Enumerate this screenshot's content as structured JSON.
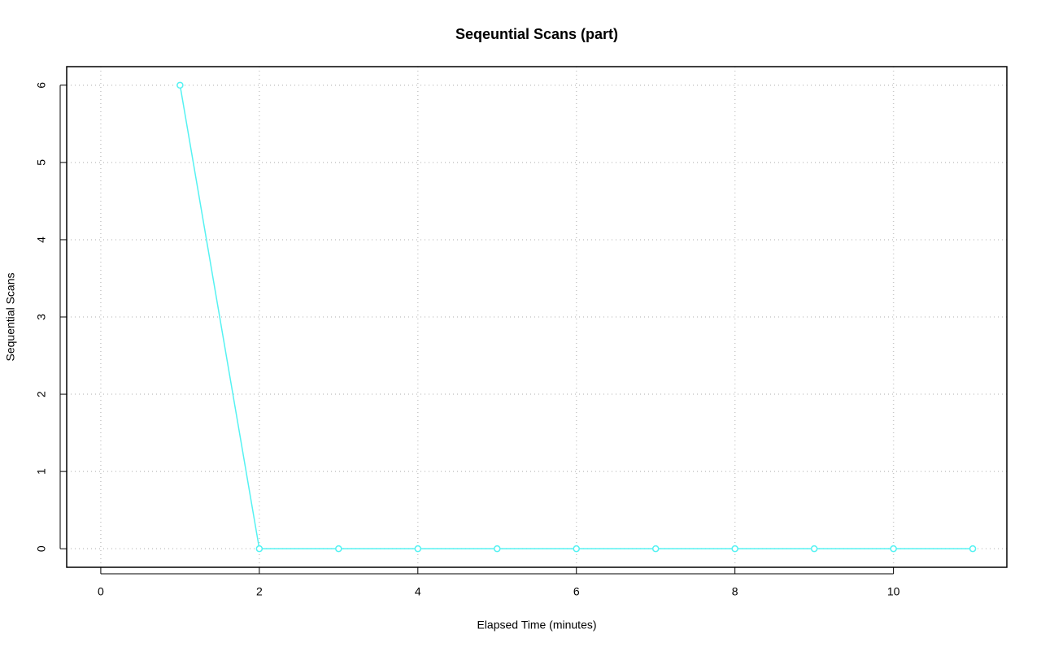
{
  "chart_data": {
    "type": "line",
    "title": "Seqeuntial Scans (part)",
    "x_label": "Elapsed Time (minutes)",
    "y_label": "Sequential Scans",
    "x": [
      1,
      2,
      3,
      4,
      5,
      6,
      7,
      8,
      9,
      10,
      11
    ],
    "series": [
      {
        "color": "#55f2f2",
        "values": [
          6,
          0,
          0,
          0,
          0,
          0,
          0,
          0,
          0,
          0,
          0
        ]
      }
    ],
    "xlim": [
      -0.43,
      11.43
    ],
    "ylim": [
      -0.24,
      6.24
    ],
    "xticks": [
      0,
      2,
      4,
      6,
      8,
      10
    ],
    "yticks": [
      0,
      1,
      2,
      3,
      4,
      5,
      6
    ],
    "grid": true,
    "markers": "circle"
  }
}
